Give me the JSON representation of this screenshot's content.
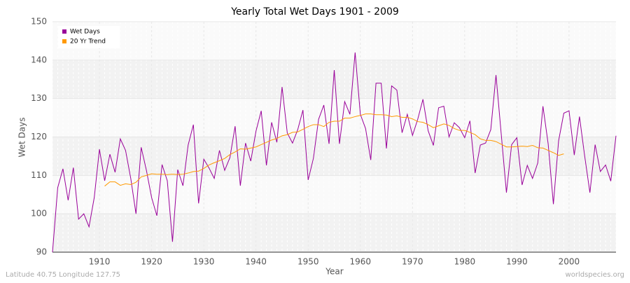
{
  "chart_data": {
    "type": "line",
    "title": "Yearly Total Wet Days 1901 - 2009",
    "x_label": "Year",
    "y_label": "Wet Days",
    "footer_left": "Latitude 40.75 Longitude 127.75",
    "footer_right": "worldspecies.org",
    "x": [
      1901,
      1902,
      1903,
      1904,
      1905,
      1906,
      1907,
      1908,
      1909,
      1910,
      1911,
      1912,
      1913,
      1914,
      1915,
      1916,
      1917,
      1918,
      1919,
      1920,
      1921,
      1922,
      1923,
      1924,
      1925,
      1926,
      1927,
      1928,
      1929,
      1930,
      1931,
      1932,
      1933,
      1934,
      1935,
      1936,
      1937,
      1938,
      1939,
      1940,
      1941,
      1942,
      1943,
      1944,
      1945,
      1946,
      1947,
      1948,
      1949,
      1950,
      1951,
      1952,
      1953,
      1954,
      1955,
      1956,
      1957,
      1958,
      1959,
      1960,
      1961,
      1962,
      1963,
      1964,
      1965,
      1966,
      1967,
      1968,
      1969,
      1970,
      1971,
      1972,
      1973,
      1974,
      1975,
      1976,
      1977,
      1978,
      1979,
      1980,
      1981,
      1982,
      1983,
      1984,
      1985,
      1986,
      1987,
      1988,
      1989,
      1990,
      1991,
      1992,
      1993,
      1994,
      1995,
      1996,
      1997,
      1998,
      1999,
      2000,
      2001,
      2002,
      2003,
      2004,
      2005,
      2006,
      2007,
      2008,
      2009
    ],
    "series": [
      {
        "name": "Wet Days",
        "color": "#990099",
        "values": [
          90,
          106.8,
          111.7,
          103.5,
          112,
          98.6,
          100,
          96.6,
          104.2,
          116.8,
          108.6,
          115.5,
          110.8,
          119.5,
          116.5,
          109.2,
          100,
          117.3,
          111.3,
          104.2,
          99.5,
          112.8,
          108.6,
          92.7,
          111.5,
          107.3,
          117.9,
          123.2,
          102.7,
          114.2,
          111.9,
          109.2,
          116.5,
          111.3,
          114.6,
          122.8,
          107.3,
          118.4,
          113.7,
          121.5,
          126.8,
          112.6,
          123.8,
          118.6,
          133,
          121,
          118.4,
          121.9,
          127,
          108.8,
          114.4,
          124.6,
          128.3,
          118.2,
          137.4,
          118.2,
          129.2,
          125.9,
          142,
          125.9,
          122.2,
          114,
          134,
          134,
          117,
          133.3,
          132.2,
          121.1,
          125.9,
          120.4,
          124.6,
          129.8,
          121.6,
          117.8,
          127.6,
          128,
          120,
          123.7,
          122.4,
          119.8,
          124.2,
          110.6,
          117.9,
          118.4,
          121.9,
          136.1,
          120.8,
          105.5,
          118,
          119.8,
          107.5,
          112.6,
          109.2,
          113.2,
          128,
          118.2,
          102.5,
          119,
          126.2,
          126.8,
          115.3,
          125.3,
          115,
          105.5,
          118,
          111,
          112.7,
          108.5,
          120.3
        ]
      },
      {
        "name": "20 Yr Trend",
        "color": "#ff9900",
        "values": [
          null,
          null,
          null,
          null,
          null,
          null,
          null,
          null,
          null,
          null,
          107.2,
          108.3,
          108.3,
          107.4,
          107.8,
          107.6,
          108.2,
          109.6,
          110,
          110.4,
          110.3,
          110.3,
          110.2,
          110.3,
          110.2,
          110.3,
          110.6,
          111,
          111.1,
          111.8,
          112.7,
          113.3,
          113.8,
          114.4,
          115.4,
          116.1,
          116.9,
          116.8,
          117.1,
          117.4,
          118,
          118.6,
          119.2,
          119.6,
          120.3,
          120.6,
          121.2,
          121.3,
          122,
          122.7,
          123.2,
          123.2,
          122.7,
          123.8,
          124.1,
          124.1,
          124.9,
          124.9,
          125.3,
          125.6,
          126,
          126,
          125.8,
          125.8,
          125.7,
          125.3,
          125.5,
          125.1,
          125.1,
          124.7,
          124,
          123.8,
          123.2,
          122.4,
          122.9,
          123.4,
          123,
          122.2,
          121.7,
          121.7,
          121.2,
          120.6,
          119.5,
          119.1,
          119.1,
          118.8,
          118.1,
          117.4,
          117.4,
          117.5,
          117.6,
          117.5,
          117.8,
          117.2,
          117.1,
          116.5,
          115.9,
          115.2,
          115.6,
          null,
          null,
          null,
          null,
          null,
          null,
          null,
          null,
          null,
          null
        ]
      }
    ],
    "xlim": [
      1901,
      2009
    ],
    "xticks": [
      1910,
      1920,
      1930,
      1940,
      1950,
      1960,
      1970,
      1980,
      1990,
      2000
    ],
    "ylim": [
      90,
      150
    ],
    "yticks": [
      90,
      100,
      110,
      120,
      130,
      140,
      150
    ],
    "grid": true,
    "legend": "top-left"
  }
}
